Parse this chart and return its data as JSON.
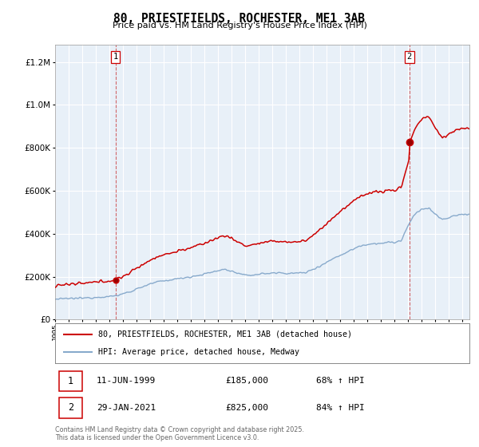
{
  "title": "80, PRIESTFIELDS, ROCHESTER, ME1 3AB",
  "subtitle": "Price paid vs. HM Land Registry's House Price Index (HPI)",
  "legend_line1": "80, PRIESTFIELDS, ROCHESTER, ME1 3AB (detached house)",
  "legend_line2": "HPI: Average price, detached house, Medway",
  "sale1_date": "11-JUN-1999",
  "sale1_price": "£185,000",
  "sale1_hpi": "68% ↑ HPI",
  "sale1_year": 1999.44,
  "sale1_value": 185000,
  "sale2_date": "29-JAN-2021",
  "sale2_price": "£825,000",
  "sale2_hpi": "84% ↑ HPI",
  "sale2_year": 2021.08,
  "sale2_value": 825000,
  "red_color": "#cc0000",
  "blue_color": "#88aacc",
  "background": "#e8f0f8",
  "grid_color": "#ffffff",
  "footer": "Contains HM Land Registry data © Crown copyright and database right 2025.\nThis data is licensed under the Open Government Licence v3.0.",
  "ylim": [
    0,
    1280000
  ],
  "xlim_start": 1995.0,
  "xlim_end": 2025.5
}
